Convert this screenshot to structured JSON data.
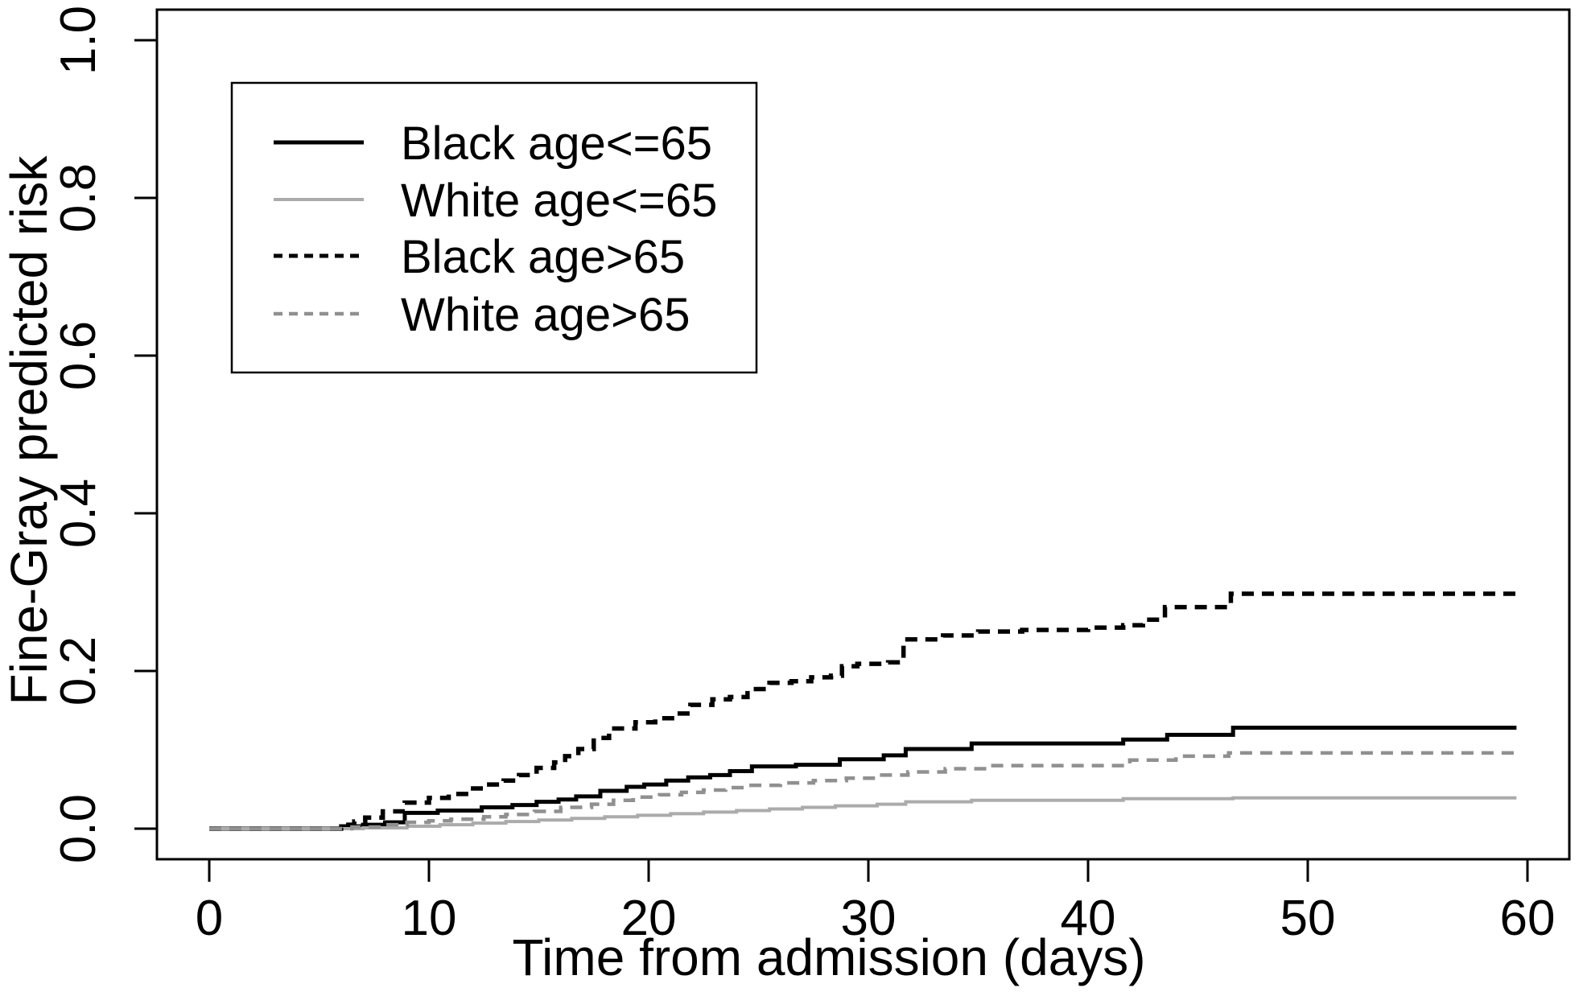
{
  "figure": {
    "background": "#ffffff",
    "frame_color": "#000000"
  },
  "chart_data": {
    "type": "line",
    "subtype": "step-function-cumulative-incidence",
    "title": "",
    "xlabel": "Time from admission (days)",
    "ylabel": "Fine-Gray predicted risk",
    "xlim": [
      0,
      60
    ],
    "ylim": [
      0.0,
      1.0
    ],
    "xticks": [
      0,
      10,
      20,
      30,
      40,
      50,
      60
    ],
    "ytick_labels": [
      "0.0",
      "0.2",
      "0.4",
      "0.6",
      "0.8",
      "1.0"
    ],
    "ytick_values": [
      0,
      0.2,
      0.4,
      0.6,
      0.8,
      1.0
    ],
    "grid": false,
    "legend_position": "top-left",
    "curve_end_day": 59.5,
    "series": [
      {
        "name": "Black age<=65",
        "color": "#000000",
        "line_style": "solid",
        "line_width": 5,
        "final_value": 0.128,
        "points": [
          [
            0,
            0
          ],
          [
            6,
            0.003
          ],
          [
            7,
            0.005
          ],
          [
            8,
            0.008
          ],
          [
            8.9,
            0.02
          ],
          [
            10.4,
            0.023
          ],
          [
            12.4,
            0.027
          ],
          [
            13.8,
            0.03
          ],
          [
            14.9,
            0.034
          ],
          [
            15.9,
            0.037
          ],
          [
            16.7,
            0.041
          ],
          [
            17.8,
            0.048
          ],
          [
            19,
            0.053
          ],
          [
            19.8,
            0.056
          ],
          [
            20.8,
            0.061
          ],
          [
            21.8,
            0.065
          ],
          [
            22.8,
            0.068
          ],
          [
            23.7,
            0.073
          ],
          [
            24.7,
            0.079
          ],
          [
            26.7,
            0.081
          ],
          [
            28.7,
            0.088
          ],
          [
            30.7,
            0.093
          ],
          [
            31.7,
            0.101
          ],
          [
            34.7,
            0.108
          ],
          [
            41.6,
            0.113
          ],
          [
            43.6,
            0.119
          ],
          [
            46.6,
            0.128
          ],
          [
            59.5,
            0.128
          ]
        ]
      },
      {
        "name": "White age<=65",
        "color": "#ababab",
        "line_style": "solid",
        "line_width": 4,
        "final_value": 0.039,
        "points": [
          [
            0,
            0
          ],
          [
            7,
            0.001
          ],
          [
            9,
            0.003
          ],
          [
            10.5,
            0.005
          ],
          [
            12,
            0.007
          ],
          [
            13.5,
            0.009
          ],
          [
            15,
            0.011
          ],
          [
            16.5,
            0.013
          ],
          [
            18,
            0.015
          ],
          [
            19.5,
            0.017
          ],
          [
            21,
            0.019
          ],
          [
            22.5,
            0.021
          ],
          [
            24,
            0.023
          ],
          [
            25.5,
            0.025
          ],
          [
            27,
            0.027
          ],
          [
            28.5,
            0.029
          ],
          [
            30.4,
            0.031
          ],
          [
            31.7,
            0.034
          ],
          [
            34.7,
            0.036
          ],
          [
            41.6,
            0.038
          ],
          [
            46.6,
            0.039
          ],
          [
            59.5,
            0.039
          ]
        ]
      },
      {
        "name": "Black age>65",
        "color": "#000000",
        "line_style": "dashed",
        "line_width": 5.5,
        "final_value": 0.298,
        "points": [
          [
            0,
            0
          ],
          [
            6,
            0.005
          ],
          [
            6.6,
            0.009
          ],
          [
            7.1,
            0.014
          ],
          [
            7.9,
            0.022
          ],
          [
            8.9,
            0.033
          ],
          [
            10,
            0.039
          ],
          [
            10.9,
            0.044
          ],
          [
            11.8,
            0.051
          ],
          [
            12.5,
            0.056
          ],
          [
            13.4,
            0.061
          ],
          [
            14.1,
            0.068
          ],
          [
            14.9,
            0.077
          ],
          [
            15.7,
            0.084
          ],
          [
            16.2,
            0.092
          ],
          [
            16.8,
            0.101
          ],
          [
            17.5,
            0.115
          ],
          [
            18.2,
            0.127
          ],
          [
            19.4,
            0.135
          ],
          [
            20.3,
            0.14
          ],
          [
            21.2,
            0.146
          ],
          [
            21.9,
            0.157
          ],
          [
            22.9,
            0.164
          ],
          [
            23.7,
            0.167
          ],
          [
            24.5,
            0.177
          ],
          [
            25.5,
            0.185
          ],
          [
            26.5,
            0.187
          ],
          [
            27.4,
            0.192
          ],
          [
            28.3,
            0.194
          ],
          [
            28.8,
            0.206
          ],
          [
            29.5,
            0.209
          ],
          [
            30.9,
            0.211
          ],
          [
            31.6,
            0.24
          ],
          [
            33.4,
            0.245
          ],
          [
            35,
            0.25
          ],
          [
            37,
            0.252
          ],
          [
            40,
            0.255
          ],
          [
            41.6,
            0.258
          ],
          [
            42.5,
            0.265
          ],
          [
            43.5,
            0.281
          ],
          [
            46.5,
            0.298
          ],
          [
            59.5,
            0.298
          ]
        ]
      },
      {
        "name": "White age>65",
        "color": "#909090",
        "line_style": "dashed",
        "line_width": 4.5,
        "final_value": 0.096,
        "points": [
          [
            0,
            0
          ],
          [
            6.5,
            0.002
          ],
          [
            8,
            0.005
          ],
          [
            9,
            0.008
          ],
          [
            10,
            0.01
          ],
          [
            11,
            0.012
          ],
          [
            12.5,
            0.015
          ],
          [
            13.5,
            0.018
          ],
          [
            14.8,
            0.022
          ],
          [
            16,
            0.027
          ],
          [
            17.4,
            0.031
          ],
          [
            18.4,
            0.036
          ],
          [
            19.3,
            0.04
          ],
          [
            20.5,
            0.043
          ],
          [
            21.5,
            0.046
          ],
          [
            22.5,
            0.049
          ],
          [
            23.5,
            0.052
          ],
          [
            24.5,
            0.055
          ],
          [
            26,
            0.058
          ],
          [
            27.5,
            0.061
          ],
          [
            29,
            0.064
          ],
          [
            30.4,
            0.068
          ],
          [
            31.8,
            0.072
          ],
          [
            33.5,
            0.076
          ],
          [
            35.4,
            0.08
          ],
          [
            41.9,
            0.087
          ],
          [
            44,
            0.092
          ],
          [
            46.4,
            0.096
          ],
          [
            59.5,
            0.096
          ]
        ]
      }
    ]
  },
  "legend": {
    "items": [
      {
        "label": "Black age<=65"
      },
      {
        "label": "White age<=65"
      },
      {
        "label": "Black age>65"
      },
      {
        "label": "White age>65"
      }
    ]
  }
}
